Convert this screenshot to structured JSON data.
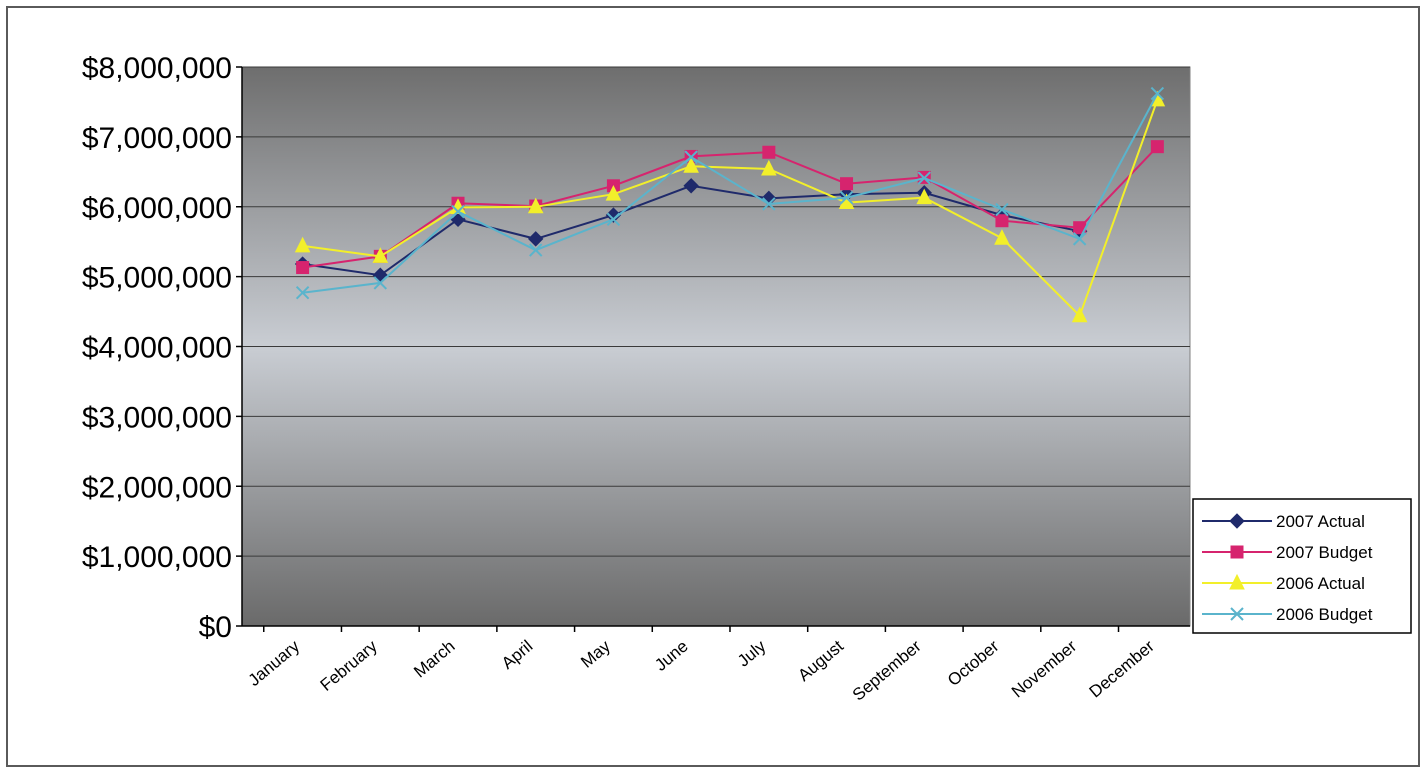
{
  "chart_data": {
    "type": "line",
    "title": "",
    "xlabel": "",
    "ylabel": "",
    "categories": [
      "January",
      "February",
      "March",
      "April",
      "May",
      "June",
      "July",
      "August",
      "September",
      "October",
      "November",
      "December"
    ],
    "y_ticks": [
      "$0",
      "$1,000,000",
      "$2,000,000",
      "$3,000,000",
      "$4,000,000",
      "$5,000,000",
      "$6,000,000",
      "$7,000,000",
      "$8,000,000"
    ],
    "ylim": [
      0,
      8000000
    ],
    "grid": true,
    "legend_position": "right",
    "series": [
      {
        "name": "2007 Actual",
        "color": "#1f2a6b",
        "marker": "diamond",
        "values": [
          5180000,
          5020000,
          5820000,
          5540000,
          5880000,
          6300000,
          6120000,
          6180000,
          6200000,
          5880000,
          5650000,
          null
        ]
      },
      {
        "name": "2007 Budget",
        "color": "#d6246e",
        "marker": "square",
        "values": [
          5130000,
          5290000,
          6050000,
          6010000,
          6300000,
          6720000,
          6780000,
          6330000,
          6420000,
          5800000,
          5700000,
          6860000
        ]
      },
      {
        "name": "2006 Actual",
        "color": "#f2ef2a",
        "marker": "triangle",
        "values": [
          5440000,
          5290000,
          5990000,
          6000000,
          6180000,
          6580000,
          6540000,
          6060000,
          6130000,
          5550000,
          4440000,
          7530000
        ]
      },
      {
        "name": "2006 Budget",
        "color": "#5ab4cc",
        "marker": "x",
        "values": [
          4770000,
          4910000,
          5930000,
          5380000,
          5820000,
          6710000,
          6040000,
          6130000,
          6410000,
          5960000,
          5540000,
          7620000
        ]
      }
    ]
  }
}
